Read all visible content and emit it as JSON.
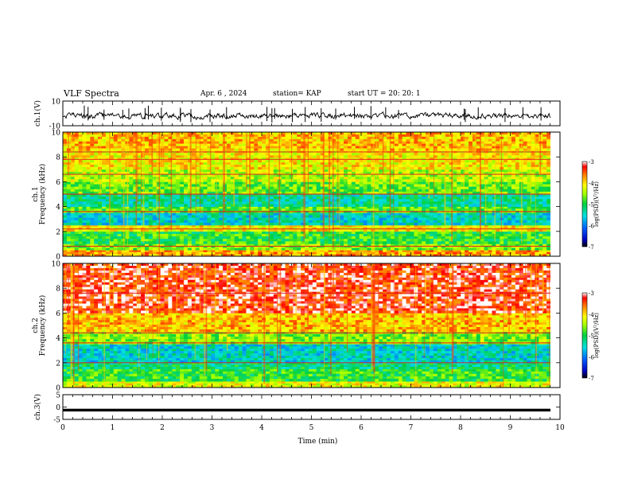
{
  "header": {
    "title": "VLF Spectra",
    "date": "Apr. 6 , 2024",
    "station": "station= KAP",
    "start": "start UT = 20: 20: 1"
  },
  "chart_data": [
    {
      "type": "line",
      "name_panel": "ch1-waveform",
      "ylabel": "ch.1(V)",
      "ylim": [
        -10,
        10
      ],
      "yticks": [
        10,
        -10
      ],
      "xlim": [
        0,
        10
      ],
      "trace_color": "#000000"
    },
    {
      "type": "heatmap",
      "name_panel": "ch1-spectrogram",
      "ylabel": "ch.1\nFrequency (kHz)",
      "ylim": [
        0,
        10
      ],
      "yticks": [
        0,
        2,
        4,
        6,
        8,
        10
      ],
      "xlim": [
        0,
        10
      ],
      "colorbar": {
        "label": "log(PSD)(V²/Hz)",
        "range": [
          -7,
          -3
        ],
        "ticks": [
          -3,
          -4,
          -5,
          -6,
          -7
        ]
      },
      "bands": [
        {
          "from": 0,
          "to": 0.5,
          "level": -3.8
        },
        {
          "from": 0.5,
          "to": 1.0,
          "level": -4.6
        },
        {
          "from": 1.0,
          "to": 2.0,
          "level": -4.9
        },
        {
          "from": 2.0,
          "to": 2.5,
          "level": -4.1
        },
        {
          "from": 2.5,
          "to": 3.5,
          "level": -5.5
        },
        {
          "from": 3.5,
          "to": 4.0,
          "level": -4.8
        },
        {
          "from": 4.0,
          "to": 5.0,
          "level": -5.3
        },
        {
          "from": 5.0,
          "to": 6.0,
          "level": -4.7
        },
        {
          "from": 6.0,
          "to": 7.0,
          "level": -4.4
        },
        {
          "from": 7.0,
          "to": 8.5,
          "level": -4.1
        },
        {
          "from": 8.5,
          "to": 10.0,
          "level": -3.9
        }
      ],
      "lines_khz": [
        0.8,
        2.2,
        3.6,
        5.0,
        6.6,
        7.8,
        8.4
      ]
    },
    {
      "type": "heatmap",
      "name_panel": "ch2-spectrogram",
      "ylabel": "ch.2\nFrequency (kHz)",
      "ylim": [
        0,
        10
      ],
      "yticks": [
        0,
        2,
        4,
        6,
        8,
        10
      ],
      "xlim": [
        0,
        10
      ],
      "colorbar": {
        "label": "log(PSD)(V²/Hz)",
        "range": [
          -7,
          -3
        ],
        "ticks": [
          -3,
          -4,
          -5,
          -6,
          -7
        ]
      },
      "bands": [
        {
          "from": 0,
          "to": 0.5,
          "level": -4.2
        },
        {
          "from": 0.5,
          "to": 1.5,
          "level": -4.9
        },
        {
          "from": 1.5,
          "to": 2.0,
          "level": -5.2
        },
        {
          "from": 2.0,
          "to": 3.5,
          "level": -5.5
        },
        {
          "from": 3.5,
          "to": 4.5,
          "level": -4.6
        },
        {
          "from": 4.5,
          "to": 6.0,
          "level": -3.9
        },
        {
          "from": 6.0,
          "to": 10.0,
          "level": -3.3
        }
      ],
      "lines_khz": [
        2.0,
        3.6,
        4.4,
        7.6
      ]
    },
    {
      "type": "line",
      "name_panel": "ch3-waveform",
      "ylabel": "ch.3(V)",
      "ylim": [
        -5,
        5
      ],
      "yticks": [
        5,
        0,
        -5
      ],
      "xlim": [
        0,
        10
      ],
      "xlabel": "Time (min)",
      "xticks": [
        0,
        1,
        2,
        3,
        4,
        5,
        6,
        7,
        8,
        9,
        10
      ],
      "trace_color": "#000000"
    }
  ]
}
